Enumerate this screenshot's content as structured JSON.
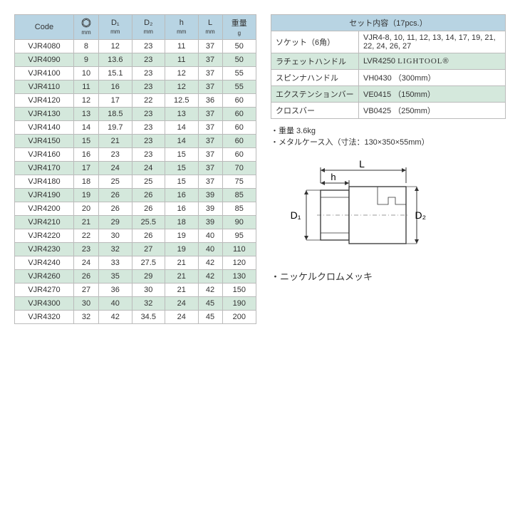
{
  "colors": {
    "header_bg": "#b8d4e3",
    "stripe_bg": "#d4e8dc",
    "border": "#bbbbbb",
    "text": "#333333"
  },
  "spec_table": {
    "columns": [
      "Code",
      "hex_mm",
      "D1_mm",
      "D2_mm",
      "h_mm",
      "L_mm",
      "weight_g"
    ],
    "header_labels": {
      "code": "Code",
      "D1": "D₁",
      "D2": "D₂",
      "h": "h",
      "L": "L",
      "weight_top": "重量",
      "unit_mm": "mm",
      "unit_g": "g"
    },
    "rows": [
      [
        "VJR4080",
        "8",
        "12",
        "23",
        "11",
        "37",
        "50"
      ],
      [
        "VJR4090",
        "9",
        "13.6",
        "23",
        "11",
        "37",
        "50"
      ],
      [
        "VJR4100",
        "10",
        "15.1",
        "23",
        "12",
        "37",
        "55"
      ],
      [
        "VJR4110",
        "11",
        "16",
        "23",
        "12",
        "37",
        "55"
      ],
      [
        "VJR4120",
        "12",
        "17",
        "22",
        "12.5",
        "36",
        "60"
      ],
      [
        "VJR4130",
        "13",
        "18.5",
        "23",
        "13",
        "37",
        "60"
      ],
      [
        "VJR4140",
        "14",
        "19.7",
        "23",
        "14",
        "37",
        "60"
      ],
      [
        "VJR4150",
        "15",
        "21",
        "23",
        "14",
        "37",
        "60"
      ],
      [
        "VJR4160",
        "16",
        "23",
        "23",
        "15",
        "37",
        "60"
      ],
      [
        "VJR4170",
        "17",
        "24",
        "24",
        "15",
        "37",
        "70"
      ],
      [
        "VJR4180",
        "18",
        "25",
        "25",
        "15",
        "37",
        "75"
      ],
      [
        "VJR4190",
        "19",
        "26",
        "26",
        "16",
        "39",
        "85"
      ],
      [
        "VJR4200",
        "20",
        "26",
        "26",
        "16",
        "39",
        "85"
      ],
      [
        "VJR4210",
        "21",
        "29",
        "25.5",
        "18",
        "39",
        "90"
      ],
      [
        "VJR4220",
        "22",
        "30",
        "26",
        "19",
        "40",
        "95"
      ],
      [
        "VJR4230",
        "23",
        "32",
        "27",
        "19",
        "40",
        "110"
      ],
      [
        "VJR4240",
        "24",
        "33",
        "27.5",
        "21",
        "42",
        "120"
      ],
      [
        "VJR4260",
        "26",
        "35",
        "29",
        "21",
        "42",
        "130"
      ],
      [
        "VJR4270",
        "27",
        "36",
        "30",
        "21",
        "42",
        "150"
      ],
      [
        "VJR4300",
        "30",
        "40",
        "32",
        "24",
        "45",
        "190"
      ],
      [
        "VJR4320",
        "32",
        "42",
        "34.5",
        "24",
        "45",
        "200"
      ]
    ]
  },
  "set_contents": {
    "title": "セット内容（17pcs.）",
    "rows": [
      {
        "label": "ソケット（6角）",
        "value": "VJR4-8, 10, 11, 12, 13, 14, 17, 19, 21, 22, 24, 26, 27",
        "stripe": false
      },
      {
        "label": "ラチェットハンドル",
        "value": "LVR4250  LIGHTOOL®",
        "stripe": true,
        "lightool": true
      },
      {
        "label": "スピンナハンドル",
        "value": "VH0430 （300mm）",
        "stripe": false
      },
      {
        "label": "エクステンションバー",
        "value": "VE0415 （150mm）",
        "stripe": true
      },
      {
        "label": "クロスバー",
        "value": "VB0425 （250mm）",
        "stripe": false
      }
    ]
  },
  "notes": {
    "line1": "・重量  3.6kg",
    "line2": "・メタルケース入（寸法：130×350×55mm）"
  },
  "diagram": {
    "labels": {
      "L": "L",
      "h": "h",
      "D1": "D₁",
      "D2": "D₂"
    }
  },
  "plating": "・ニッケルクロムメッキ"
}
